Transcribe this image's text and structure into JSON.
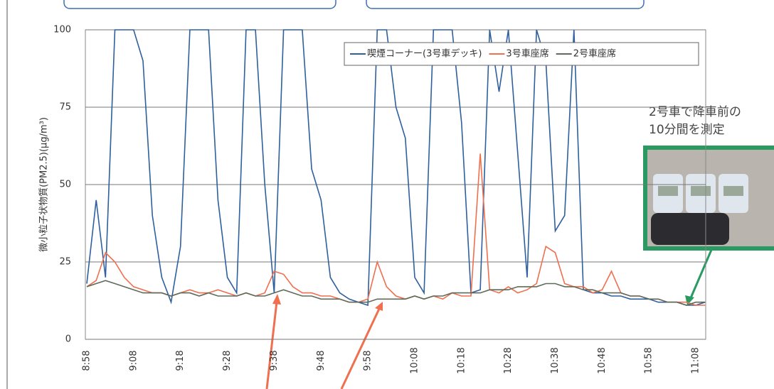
{
  "chart_data": {
    "type": "line",
    "y_label": "微小粒子状物質(PM2.5)(μg/m³)",
    "categories": [
      "8:58",
      null,
      null,
      null,
      null,
      "9:08",
      null,
      null,
      null,
      null,
      "9:18",
      null,
      null,
      null,
      null,
      "9:28",
      null,
      null,
      null,
      null,
      "9:38",
      null,
      null,
      null,
      null,
      "9:48",
      null,
      null,
      null,
      null,
      "9:58",
      null,
      null,
      null,
      null,
      "10:08",
      null,
      null,
      null,
      null,
      "10:18",
      null,
      null,
      null,
      null,
      "10:28",
      null,
      null,
      null,
      null,
      "10:38",
      null,
      null,
      null,
      null,
      "10:48",
      null,
      null,
      null,
      null,
      "10:58",
      null,
      null,
      null,
      null,
      "11:08",
      null
    ],
    "series": [
      {
        "name": "喫煙コーナー(3号車デッキ)",
        "color": "#2e5f9e",
        "values": [
          18,
          45,
          20,
          100,
          100,
          100,
          90,
          40,
          20,
          12,
          30,
          100,
          100,
          100,
          45,
          20,
          15,
          100,
          100,
          50,
          15,
          100,
          100,
          100,
          55,
          45,
          20,
          15,
          13,
          12,
          11,
          100,
          100,
          75,
          65,
          20,
          15,
          100,
          100,
          100,
          70,
          15,
          16,
          100,
          80,
          100,
          60,
          20,
          100,
          90,
          35,
          40,
          100,
          16,
          15,
          15,
          14,
          14,
          13,
          13,
          13,
          12,
          12,
          12,
          11,
          11,
          12
        ]
      },
      {
        "name": "3号車座席",
        "color": "#ef6f4f",
        "values": [
          17,
          19,
          28,
          25,
          20,
          17,
          16,
          15,
          15,
          14,
          15,
          16,
          15,
          15,
          16,
          15,
          14,
          15,
          14,
          15,
          22,
          21,
          17,
          15,
          15,
          14,
          14,
          13,
          12,
          12,
          13,
          25,
          17,
          14,
          13,
          14,
          13,
          14,
          13,
          15,
          14,
          14,
          60,
          16,
          15,
          17,
          15,
          16,
          18,
          30,
          28,
          18,
          17,
          17,
          15,
          16,
          22,
          15,
          14,
          14,
          13,
          13,
          12,
          12,
          12,
          11,
          11
        ]
      },
      {
        "name": "2号車座席",
        "color": "#5e6b5a",
        "values": [
          17,
          18,
          19,
          18,
          17,
          16,
          15,
          15,
          15,
          14,
          15,
          15,
          14,
          15,
          14,
          14,
          14,
          15,
          14,
          14,
          15,
          16,
          15,
          14,
          14,
          13,
          13,
          13,
          12,
          12,
          12,
          13,
          13,
          13,
          13,
          14,
          13,
          14,
          14,
          15,
          15,
          15,
          15,
          16,
          16,
          16,
          17,
          17,
          17,
          18,
          18,
          17,
          17,
          16,
          16,
          15,
          15,
          15,
          14,
          14,
          13,
          13,
          12,
          12,
          11,
          12,
          12
        ]
      }
    ],
    "ylim": [
      0,
      100
    ],
    "yticks": [
      0,
      25,
      50,
      75,
      100
    ],
    "grid": true,
    "legend": "upper right",
    "annotation": [
      "2号車で降車前の",
      "10分間を測定"
    ]
  }
}
